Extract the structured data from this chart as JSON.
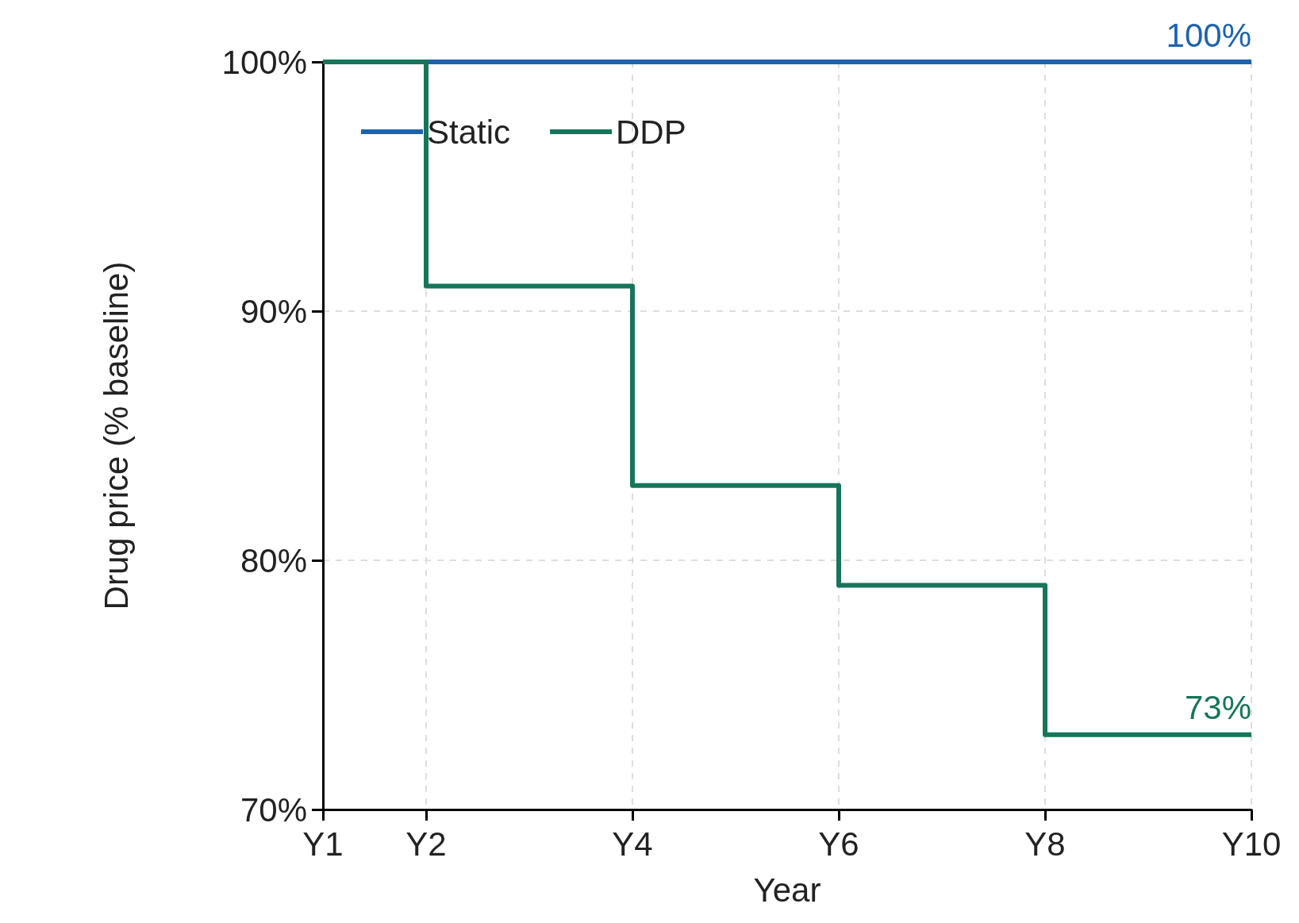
{
  "chart_data": {
    "type": "step",
    "xlabel": "Year",
    "ylabel": "Drug price (% baseline)",
    "categories": [
      "Y1",
      "Y2",
      null,
      "Y4",
      null,
      "Y6",
      null,
      "Y8",
      null,
      "Y10"
    ],
    "series": [
      {
        "name": "Static",
        "color": "#1f63ad",
        "values": [
          100,
          100,
          100,
          100,
          100,
          100,
          100,
          100,
          100,
          100
        ],
        "value_labels": [
          null,
          null,
          null,
          null,
          null,
          null,
          null,
          null,
          null,
          "100%"
        ]
      },
      {
        "name": "DDP",
        "color": "#16755a",
        "values": [
          100,
          91,
          91,
          83,
          83,
          79,
          79,
          73,
          73,
          73
        ],
        "value_labels": [
          null,
          null,
          null,
          null,
          null,
          null,
          null,
          null,
          null,
          "73%"
        ]
      }
    ],
    "ylim": [
      70,
      100
    ],
    "yticks": [
      {
        "value": 70,
        "label": "70%"
      },
      {
        "value": 80,
        "label": "80%"
      },
      {
        "value": 90,
        "label": "90%"
      },
      {
        "value": 100,
        "label": "100%"
      }
    ],
    "grid": true,
    "legend": "top left",
    "marker": "none",
    "line_style": "solid"
  }
}
